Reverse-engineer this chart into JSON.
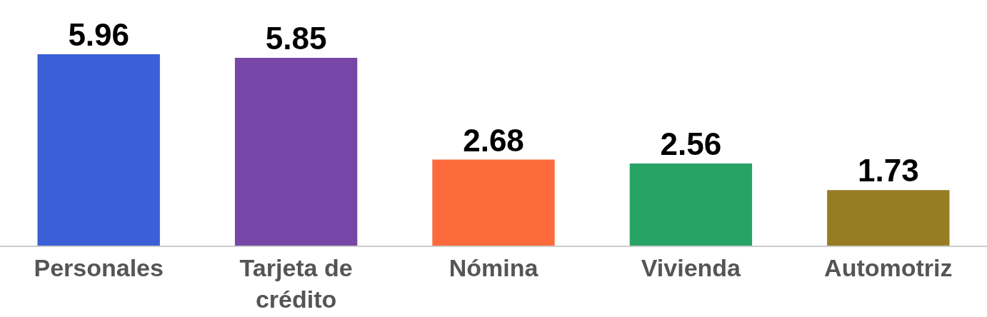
{
  "chart_data": {
    "type": "bar",
    "categories": [
      "Personales",
      "Tarjeta de crédito",
      "Nómina",
      "Vivienda",
      "Automotriz"
    ],
    "values": [
      5.96,
      5.85,
      2.68,
      2.56,
      1.73
    ],
    "colors": [
      "#3a5fd6",
      "#7647a6",
      "#fd6b3c",
      "#27a366",
      "#967d24"
    ],
    "data_labels": true
  }
}
